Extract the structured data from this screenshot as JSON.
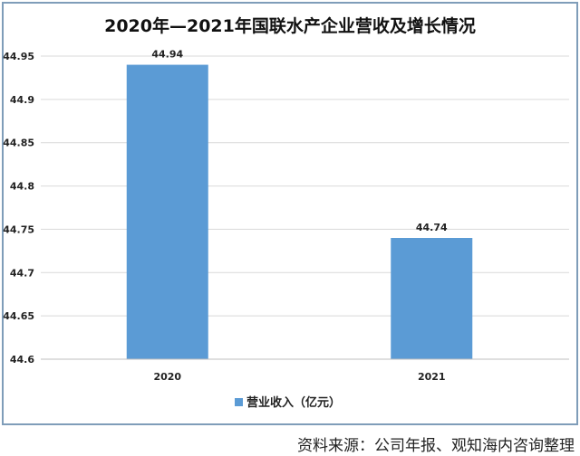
{
  "chart_data": {
    "type": "bar",
    "title": "2020年—2021年国联水产企业营收及增长情况",
    "categories": [
      "2020",
      "2021"
    ],
    "series": [
      {
        "name": "营业收入（亿元）",
        "values": [
          44.94,
          44.74
        ],
        "color": "#5b9bd5"
      }
    ],
    "data_labels": [
      "44.94",
      "44.74"
    ],
    "ylim": [
      44.6,
      44.95
    ],
    "yticks": [
      "44.6",
      "44.65",
      "44.7",
      "44.75",
      "44.8",
      "44.85",
      "44.9",
      "44.95"
    ],
    "grid": true,
    "legend": "bottom",
    "xlabel": "",
    "ylabel": ""
  },
  "source": "资料来源：公司年报、观知海内咨询整理"
}
